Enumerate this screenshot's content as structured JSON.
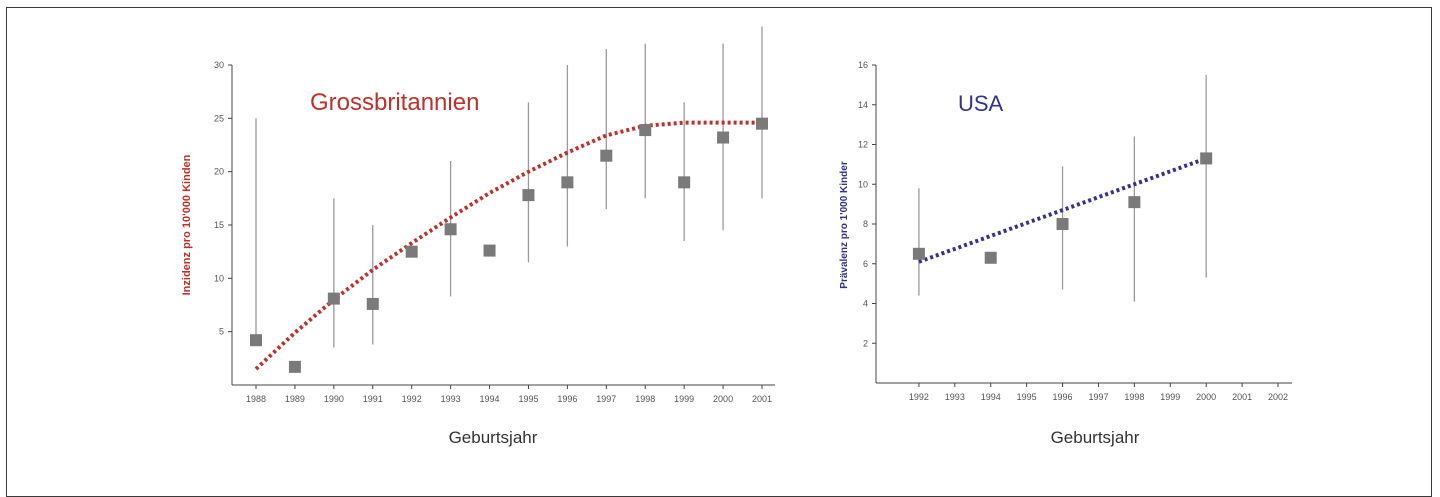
{
  "colors": {
    "marker": "#7a7a7a",
    "errorbar": "#9a9a9a",
    "axis": "#444444",
    "uk_accent": "#c0302b",
    "us_accent": "#33338f"
  },
  "chart_data": [
    {
      "type": "scatter",
      "title": "Grossbritannien",
      "xlabel": "Geburtsjahr",
      "ylabel": "Inzidenz pro 10'000 Kinden",
      "ylim": [
        0,
        30
      ],
      "xlim": [
        1988,
        2001
      ],
      "xticks": [
        1988,
        1989,
        1990,
        1991,
        1992,
        1993,
        1994,
        1995,
        1996,
        1997,
        1998,
        1999,
        2000,
        2001
      ],
      "xtick_labels": [
        "1988",
        "1989",
        "1990",
        "1991",
        "1992",
        "1993",
        "1994",
        "1995",
        "1996",
        "1997",
        "1998",
        "1999",
        "2000",
        "2001"
      ],
      "yticks": [
        5,
        10,
        15,
        20,
        25,
        30
      ],
      "ytick_labels": [
        "5",
        "10",
        "15",
        "20",
        "25",
        "30"
      ],
      "series": [
        {
          "x": [
            1988,
            1989,
            1990,
            1991,
            1992,
            1993,
            1994,
            1995,
            1996,
            1997,
            1998,
            1999,
            2000,
            2001
          ],
          "y": [
            4.2,
            1.7,
            8.1,
            7.6,
            12.5,
            14.6,
            12.6,
            17.8,
            19.0,
            21.5,
            23.9,
            19.0,
            23.2,
            24.5
          ],
          "low": [
            null,
            null,
            3.5,
            3.8,
            null,
            8.3,
            null,
            11.5,
            13.0,
            16.5,
            17.5,
            13.5,
            14.5,
            17.5
          ],
          "high": [
            25.0,
            null,
            17.5,
            15.0,
            null,
            21.0,
            null,
            26.5,
            30.0,
            31.5,
            32.0,
            26.5,
            32.0,
            35.5
          ]
        },
        {
          "type": "trend",
          "x": [
            1988,
            1989,
            1990,
            1991,
            1992,
            1993,
            1994,
            1995,
            1996,
            1997,
            1998,
            1999,
            2000,
            2001
          ],
          "y": [
            1.5,
            4.9,
            8.0,
            10.8,
            13.3,
            15.7,
            18.0,
            20.0,
            21.8,
            23.4,
            24.3,
            24.6,
            24.6,
            24.6
          ]
        }
      ]
    },
    {
      "type": "scatter",
      "title": "USA",
      "xlabel": "Geburtsjahr",
      "ylabel": "Prävalenz pro 1'000 Kinder",
      "ylim": [
        0,
        16
      ],
      "xlim": [
        1991,
        2002
      ],
      "xticks": [
        1992,
        1993,
        1994,
        1995,
        1996,
        1997,
        1998,
        1999,
        2000,
        2001,
        2002
      ],
      "xtick_labels": [
        "1992",
        "1993",
        "1994",
        "1995",
        "1996",
        "1997",
        "1998",
        "1999",
        "2000",
        "2001",
        "2002"
      ],
      "yticks": [
        2,
        4,
        6,
        8,
        10,
        12,
        14,
        16
      ],
      "ytick_labels": [
        "2",
        "4",
        "6",
        "8",
        "10",
        "12",
        "14",
        "16"
      ],
      "series": [
        {
          "x": [
            1992,
            1994,
            1996,
            1998,
            2000
          ],
          "y": [
            6.5,
            6.3,
            8.0,
            9.1,
            11.3
          ],
          "low": [
            4.4,
            null,
            4.7,
            4.1,
            5.3
          ],
          "high": [
            9.8,
            null,
            10.9,
            12.4,
            15.5
          ]
        },
        {
          "type": "trend",
          "x": [
            1992,
            2000
          ],
          "y": [
            6.1,
            11.3
          ]
        }
      ]
    }
  ]
}
